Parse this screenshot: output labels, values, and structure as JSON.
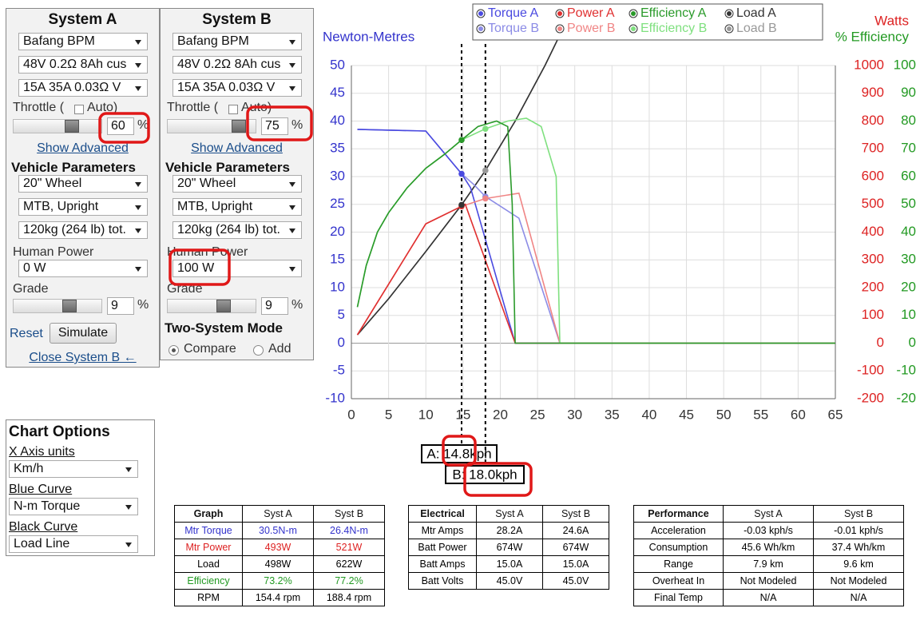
{
  "system_a": {
    "title": "System A",
    "motor": "Bafang BPM",
    "battery": "48V 0.2Ω 8Ah cus",
    "controller": "15A 35A 0.03Ω V",
    "throttle_label": "Throttle (",
    "auto_label": "Auto)",
    "throttle_value": "60",
    "percent": "%",
    "show_advanced": "Show Advanced",
    "vehicle_heading": "Vehicle Parameters",
    "wheel": "20\"  Wheel",
    "frame": "MTB, Upright",
    "mass": "120kg (264 lb) tot.",
    "human_power_label": "Human Power",
    "human_power": "0 W",
    "grade_label": "Grade",
    "grade_value": "9",
    "grade_percent": "%",
    "reset": "Reset",
    "simulate": "Simulate",
    "close": "Close System B ←"
  },
  "system_b": {
    "title": "System B",
    "motor": "Bafang BPM",
    "battery": "48V 0.2Ω 8Ah cus",
    "controller": "15A 35A 0.03Ω V",
    "throttle_label": "Throttle (",
    "auto_label": "Auto)",
    "throttle_value": "75",
    "percent": "%",
    "show_advanced": "Show Advanced",
    "vehicle_heading": "Vehicle Parameters",
    "wheel": "20\"  Wheel",
    "frame": "MTB, Upright",
    "mass": "120kg (264 lb) tot.",
    "human_power_label": "Human Power",
    "human_power": "100 W",
    "grade_label": "Grade",
    "grade_value": "9",
    "grade_percent": "%",
    "two_system_mode": "Two-System Mode",
    "compare": "Compare",
    "add": "Add"
  },
  "chart_options": {
    "title": "Chart Options",
    "x_units_label": "X Axis units",
    "x_units": "Km/h",
    "blue_label": "Blue Curve",
    "blue": "N-m Torque",
    "black_label": "Black Curve",
    "black": "Load Line"
  },
  "chart": {
    "type": "line",
    "y_label": "Newton-Metres",
    "y2_label": "Watts",
    "y3_label": "% Efficiency",
    "grid": true,
    "xlim": [
      0,
      65
    ],
    "xticks": [
      0,
      5,
      10,
      15,
      20,
      25,
      30,
      35,
      40,
      45,
      50,
      55,
      60,
      65
    ],
    "ylim": [
      -10,
      50
    ],
    "yticks": [
      -10,
      -5,
      0,
      5,
      10,
      15,
      20,
      25,
      30,
      35,
      40,
      45,
      50
    ],
    "y2lim": [
      -200,
      1000
    ],
    "y2ticks": [
      -200,
      -100,
      0,
      100,
      200,
      300,
      400,
      500,
      600,
      700,
      800,
      900,
      1000
    ],
    "y3lim": [
      -20,
      100
    ],
    "y3ticks": [
      -20,
      -10,
      0,
      10,
      20,
      30,
      40,
      50,
      60,
      70,
      80,
      90,
      100
    ],
    "series": [
      {
        "name": "Torque A",
        "color": "#4a4ae0",
        "axis": "y",
        "x": [
          0.8,
          10,
          14.8,
          16,
          22,
          65
        ],
        "values": [
          38.5,
          38.2,
          30.5,
          28,
          0,
          0
        ]
      },
      {
        "name": "Power A",
        "color": "#e03030",
        "axis": "y2",
        "x": [
          0.8,
          10,
          14.8,
          15.3,
          22,
          65
        ],
        "values": [
          30,
          430,
          493,
          500,
          0,
          0
        ]
      },
      {
        "name": "Efficiency A",
        "color": "#2a9a2a",
        "axis": "y3",
        "x": [
          0.8,
          2,
          3.5,
          5,
          7.5,
          10,
          12.5,
          14.8,
          17,
          19.5,
          21,
          21.6,
          22,
          65
        ],
        "values": [
          13,
          28,
          40,
          47,
          56,
          63,
          68,
          73.2,
          78,
          80,
          78,
          50,
          0,
          0
        ]
      },
      {
        "name": "Load A",
        "color": "#333333",
        "axis": "y2",
        "x": [
          0.8,
          5,
          10,
          14.8,
          18,
          22,
          26,
          28
        ],
        "values": [
          30,
          160,
          330,
          498,
          622,
          800,
          1000,
          1110
        ]
      },
      {
        "name": "Torque B",
        "color": "#8c8ce6",
        "axis": "y",
        "x": [
          0.8,
          10,
          14.8,
          16.5,
          18,
          22.5,
          28,
          65
        ],
        "values": [
          38.5,
          38.2,
          30.5,
          28.5,
          26.4,
          22.5,
          0,
          0
        ]
      },
      {
        "name": "Power B",
        "color": "#f08585",
        "axis": "y2",
        "x": [
          0.8,
          10,
          14.8,
          18,
          22.5,
          28,
          65
        ],
        "values": [
          30,
          430,
          493,
          521,
          540,
          0,
          0
        ]
      },
      {
        "name": "Efficiency B",
        "color": "#7fe07f",
        "axis": "y3",
        "x": [
          0.8,
          2,
          3.5,
          5,
          7.5,
          10,
          12.5,
          14.8,
          18,
          21,
          23.5,
          25.5,
          27.5,
          28,
          65
        ],
        "values": [
          13,
          28,
          40,
          47,
          56,
          63,
          68,
          73.2,
          77.2,
          80,
          81,
          78,
          60,
          0,
          0
        ]
      },
      {
        "name": "Load B",
        "color": "#999999",
        "axis": "y2",
        "x": [
          0.8,
          5,
          10,
          14.8,
          18,
          22,
          26,
          28
        ],
        "values": [
          30,
          160,
          330,
          498,
          622,
          800,
          1000,
          1110
        ]
      }
    ],
    "cursors": [
      {
        "label": "A: 14.8kph",
        "x": 14.8,
        "values": [
          30.5,
          493,
          73.2,
          498
        ]
      },
      {
        "label": "B: 18.0kph",
        "x": 18,
        "values": [
          26.4,
          521,
          77.2,
          622
        ]
      }
    ]
  },
  "tables": [
    {
      "columns": [
        "Graph",
        "Syst A",
        "Syst B"
      ],
      "row_colors": [
        "#3333cc",
        "#dd2222",
        "#000000",
        "#229922",
        "#000000"
      ],
      "rows": [
        [
          "Mtr Torque",
          "30.5N-m",
          "26.4N-m"
        ],
        [
          "Mtr Power",
          "493W",
          "521W"
        ],
        [
          "Load",
          "498W",
          "622W"
        ],
        [
          "Efficiency",
          "73.2%",
          "77.2%"
        ],
        [
          "RPM",
          "154.4 rpm",
          "188.4 rpm"
        ]
      ]
    },
    {
      "columns": [
        "Electrical",
        "Syst A",
        "Syst B"
      ],
      "row_colors": [
        "#000000",
        "#000000",
        "#000000",
        "#000000"
      ],
      "rows": [
        [
          "Mtr Amps",
          "28.2A",
          "24.6A"
        ],
        [
          "Batt Power",
          "674W",
          "674W"
        ],
        [
          "Batt Amps",
          "15.0A",
          "15.0A"
        ],
        [
          "Batt Volts",
          "45.0V",
          "45.0V"
        ]
      ]
    },
    {
      "columns": [
        "Performance",
        "Syst A",
        "Syst B"
      ],
      "row_colors": [
        "#000000",
        "#000000",
        "#000000",
        "#000000",
        "#000000"
      ],
      "rows": [
        [
          "Acceleration",
          "-0.03 kph/s",
          "-0.01 kph/s"
        ],
        [
          "Consumption",
          "45.6 Wh/km",
          "37.4 Wh/km"
        ],
        [
          "Range",
          "7.9 km",
          "9.6 km"
        ],
        [
          "Overheat In",
          "Not Modeled",
          "Not Modeled"
        ],
        [
          "Final Temp",
          "N/A",
          "N/A"
        ]
      ]
    }
  ]
}
